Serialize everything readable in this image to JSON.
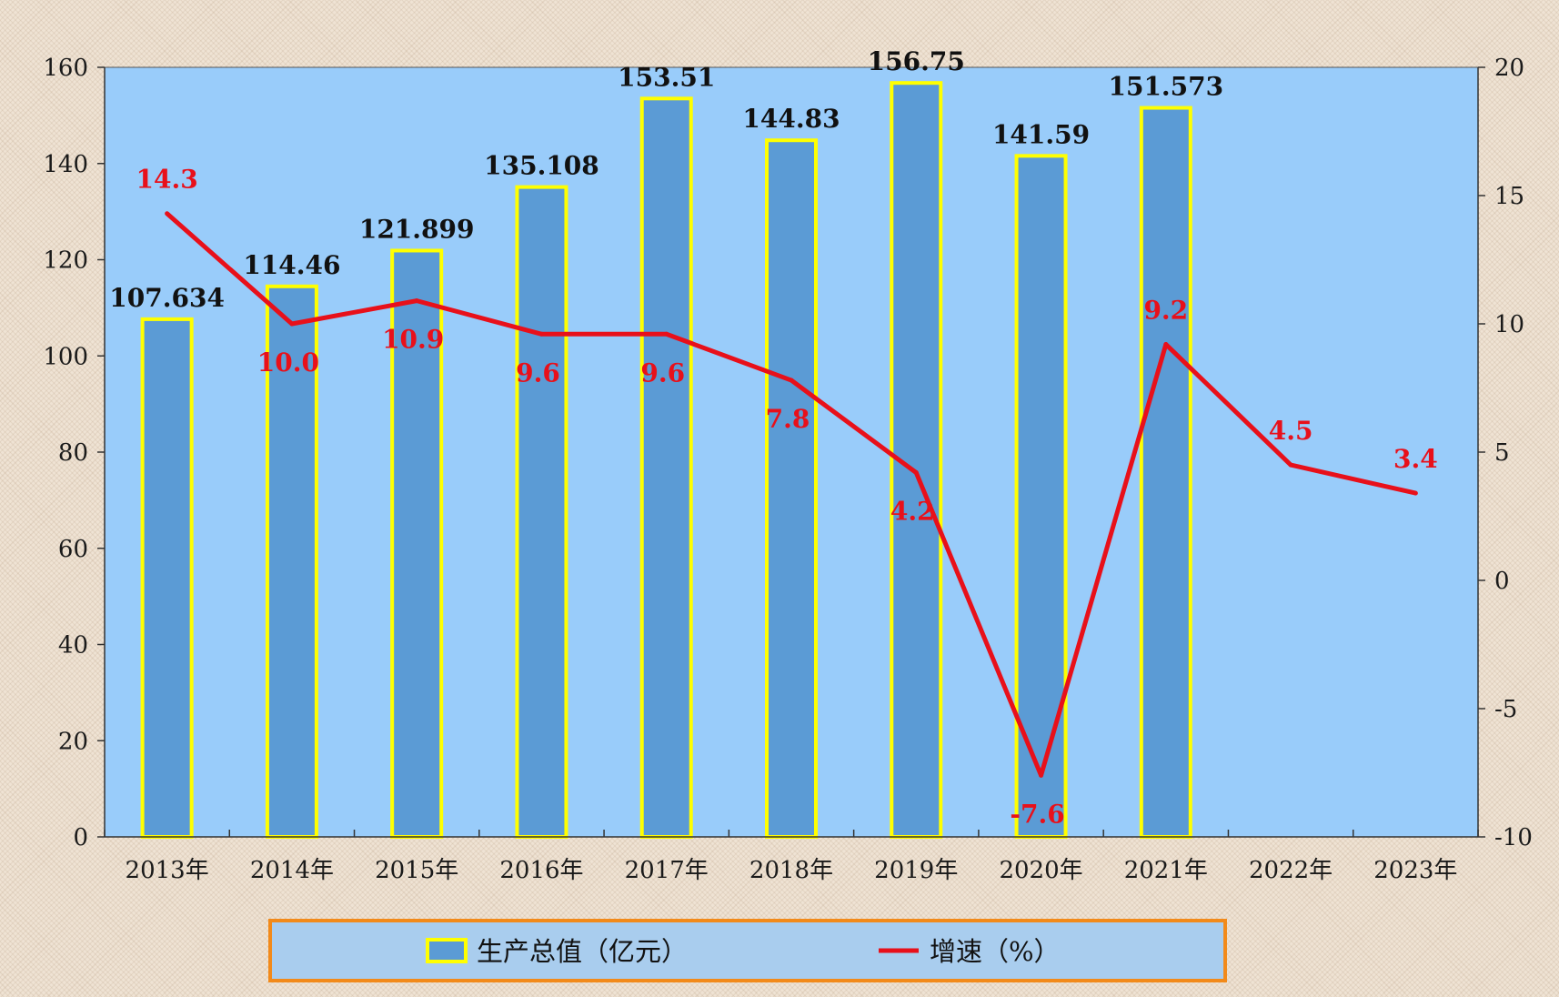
{
  "colors": {
    "plot_background": "#99ccfa",
    "bar_fill": "#5b9bd5",
    "bar_border": "#ffff00",
    "line": "#e8101a",
    "legend_border": "#f28a1a",
    "legend_background": "#a9cdee"
  },
  "chart_data": {
    "type": "bar",
    "title": "",
    "categories": [
      "2013年",
      "2014年",
      "2015年",
      "2016年",
      "2017年",
      "2018年",
      "2019年",
      "2020年",
      "2021年",
      "2022年",
      "2023年"
    ],
    "series": [
      {
        "name": "生产总值（亿元）",
        "type": "bar",
        "axis": "left",
        "values": [
          107.634,
          114.46,
          121.899,
          135.108,
          153.51,
          144.83,
          156.75,
          141.59,
          151.573,
          null,
          null
        ],
        "labels": [
          "107.634",
          "114.46",
          "121.899",
          "135.108",
          "153.51",
          "144.83",
          "156.75",
          "141.59",
          "151.573",
          "",
          ""
        ]
      },
      {
        "name": "增速（%）",
        "type": "line",
        "axis": "right",
        "values": [
          14.3,
          10.0,
          10.9,
          9.6,
          9.6,
          7.8,
          4.2,
          -7.6,
          9.2,
          4.5,
          3.4
        ],
        "labels": [
          "14.3",
          "10.0",
          "10.9",
          "9.6",
          "9.6",
          "7.8",
          "4.2",
          "-7.6",
          "9.2",
          "4.5",
          "3.4"
        ]
      }
    ],
    "y_left": {
      "ylim": [
        0,
        160
      ],
      "ticks": [
        0,
        20,
        40,
        60,
        80,
        100,
        120,
        140,
        160
      ]
    },
    "y_right": {
      "ylim": [
        -10,
        20
      ],
      "ticks": [
        -10,
        -5,
        0,
        5,
        10,
        15,
        20
      ]
    },
    "grid": false,
    "legend_position": "bottom-center"
  }
}
